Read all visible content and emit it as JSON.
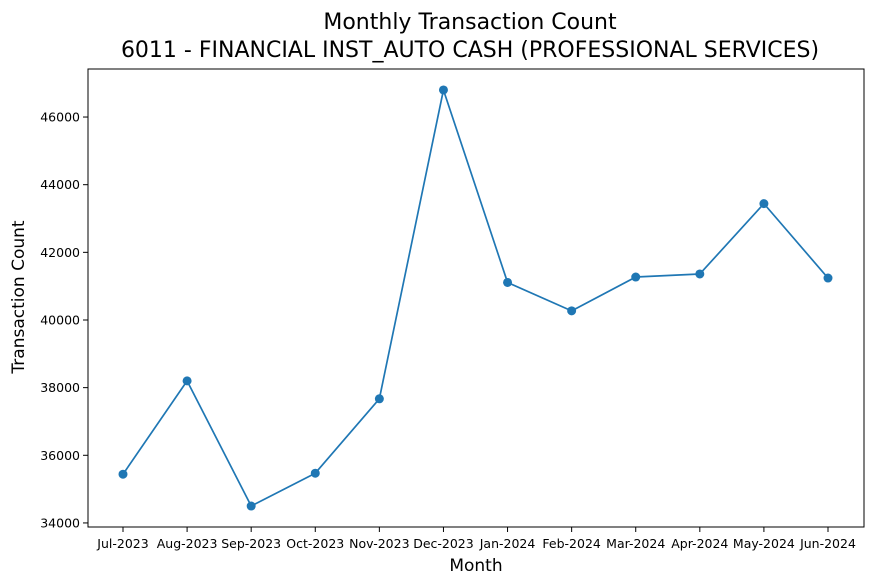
{
  "chart_data": {
    "type": "line",
    "title": "Monthly Transaction Count",
    "subtitle": "6011 - FINANCIAL INST_AUTO CASH (PROFESSIONAL SERVICES)",
    "xlabel": "Month",
    "ylabel": "Transaction Count",
    "categories": [
      "Jul-2023",
      "Aug-2023",
      "Sep-2023",
      "Oct-2023",
      "Nov-2023",
      "Dec-2023",
      "Jan-2024",
      "Feb-2024",
      "Mar-2024",
      "Apr-2024",
      "May-2024",
      "Jun-2024"
    ],
    "series": [
      {
        "values": [
          35440,
          38200,
          34500,
          35470,
          37670,
          46800,
          41110,
          40270,
          41270,
          41360,
          43440,
          41240
        ],
        "color": "#1f77b4",
        "marker": "circle"
      }
    ],
    "ylim": [
      33880,
      47420
    ],
    "yticks": [
      34000,
      36000,
      38000,
      40000,
      42000,
      44000,
      46000
    ],
    "grid": false,
    "legend": "none"
  }
}
